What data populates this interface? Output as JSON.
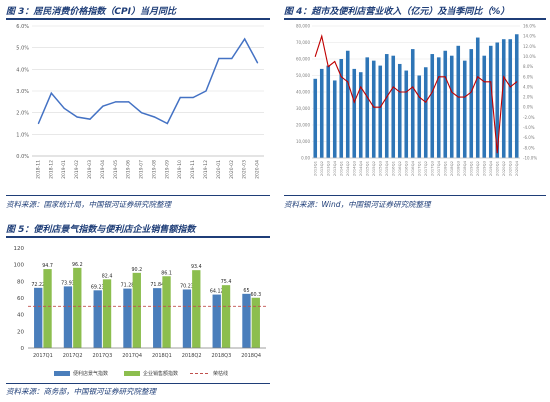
{
  "figures": {
    "fig3": {
      "title": "图 3：居民消费价格指数（CPI）当月同比",
      "source": "资料来源：国家统计局，中国银河证券研究院整理"
    },
    "fig4": {
      "title": "图 4：超市及便利店营业收入（亿元）及当季同比（%）",
      "source": "资料来源：Wind，中国银河证券研究院整理"
    },
    "fig5": {
      "title": "图 5：便利店景气指数与便利店企业销售额指数",
      "source": "资料来源：商务部，中国银河证券研究院整理"
    }
  },
  "chart_data": [
    {
      "id": "cpi",
      "type": "line",
      "x": [
        "2018-11",
        "2018-12",
        "2019-01",
        "2019-02",
        "2019-03",
        "2019-04",
        "2019-05",
        "2019-06",
        "2019-07",
        "2019-08",
        "2019-09",
        "2019-10",
        "2019-11",
        "2019-12",
        "2020-01",
        "2020-02",
        "2020-03",
        "2020-04"
      ],
      "series": [
        {
          "values": [
            1.5,
            2.9,
            2.2,
            1.8,
            1.7,
            2.3,
            2.5,
            2.5,
            2.0,
            1.8,
            1.5,
            2.7,
            2.7,
            3.0,
            4.5,
            4.5,
            5.4,
            4.3
          ]
        }
      ],
      "yticks": [
        "0.0%",
        "1.0%",
        "2.0%",
        "3.0%",
        "4.0%",
        "5.0%",
        "6.0%"
      ],
      "ylim": [
        0,
        6
      ],
      "color": "#4472c4",
      "grid": true
    },
    {
      "id": "revenue",
      "type": "bar+line",
      "x": [
        "2013Q1",
        "2013Q2",
        "2013Q3",
        "2013Q4",
        "2014Q1",
        "2014Q2",
        "2014Q3",
        "2014Q4",
        "2015Q1",
        "2015Q2",
        "2015Q3",
        "2015Q4",
        "2016Q1",
        "2016Q2",
        "2016Q3",
        "2016Q4",
        "2017Q1",
        "2017Q2",
        "2017Q3",
        "2017Q4",
        "2018Q1",
        "2018Q2",
        "2018Q3",
        "2018Q4",
        "2019Q1",
        "2019Q2",
        "2019Q3",
        "2019Q4",
        "2020Q1",
        "2020Q2",
        "2020Q3",
        "2020Q4"
      ],
      "bars": [
        48000,
        54000,
        56000,
        47000,
        60000,
        65000,
        54000,
        52000,
        61000,
        59000,
        56000,
        63000,
        62000,
        57000,
        53000,
        66000,
        50000,
        55000,
        63000,
        61000,
        65000,
        62000,
        68000,
        59000,
        66000,
        73000,
        62000,
        68000,
        70000,
        72000,
        72000,
        75000
      ],
      "growth": [
        10,
        14,
        8,
        9,
        6,
        5,
        1,
        4,
        2,
        0,
        0,
        2,
        4,
        3,
        3,
        4,
        2,
        1,
        3,
        6,
        6,
        3,
        2,
        2,
        3,
        6,
        5,
        5,
        -9,
        6,
        4,
        5
      ],
      "yticks_left": [
        "0.00",
        "10,000",
        "20,000",
        "30,000",
        "40,000",
        "50,000",
        "60,000",
        "70,000",
        "80,000"
      ],
      "ylim_left": [
        0,
        80000
      ],
      "yticks_right": [
        "-10.0%",
        "-8.0%",
        "-6.0%",
        "-4.0%",
        "-2.0%",
        "0.0%",
        "2.0%",
        "4.0%",
        "6.0%",
        "8.0%",
        "10.0%",
        "12.0%",
        "14.0%",
        "16.0%"
      ],
      "ylim_right": [
        -10,
        16
      ],
      "bar_color": "#2e75b6",
      "line_color": "#c00000",
      "grid": true
    },
    {
      "id": "indices",
      "type": "bar",
      "categories": [
        "2017Q1",
        "2017Q2",
        "2017Q3",
        "2017Q4",
        "2018Q1",
        "2018Q2",
        "2018Q3",
        "2018Q4"
      ],
      "series": [
        {
          "name": "便利店景气指数",
          "values": [
            72.22,
            73.93,
            69.23,
            71.28,
            71.84,
            70.23,
            64.12,
            65
          ],
          "labels": [
            "72.22",
            "73.93",
            "69.23",
            "71.28",
            "71.84",
            "70.23",
            "64.12",
            "65"
          ],
          "color": "#4a7ebb"
        },
        {
          "name": "企业销售额指数",
          "values": [
            94.7,
            96.2,
            82.4,
            90.2,
            86.1,
            93.4,
            75.4,
            60.3
          ],
          "labels": [
            "94.7",
            "96.2",
            "82.4",
            "90.2",
            "86.1",
            "93.4",
            "75.4",
            "60.3"
          ],
          "color": "#8cbe4e"
        }
      ],
      "reference": {
        "name": "荣枯线",
        "value": 50,
        "color": "#c0504d"
      },
      "yticks": [
        "0",
        "20",
        "40",
        "60",
        "80",
        "100",
        "120"
      ],
      "ylim": [
        0,
        120
      ],
      "legend": "bottom"
    }
  ]
}
